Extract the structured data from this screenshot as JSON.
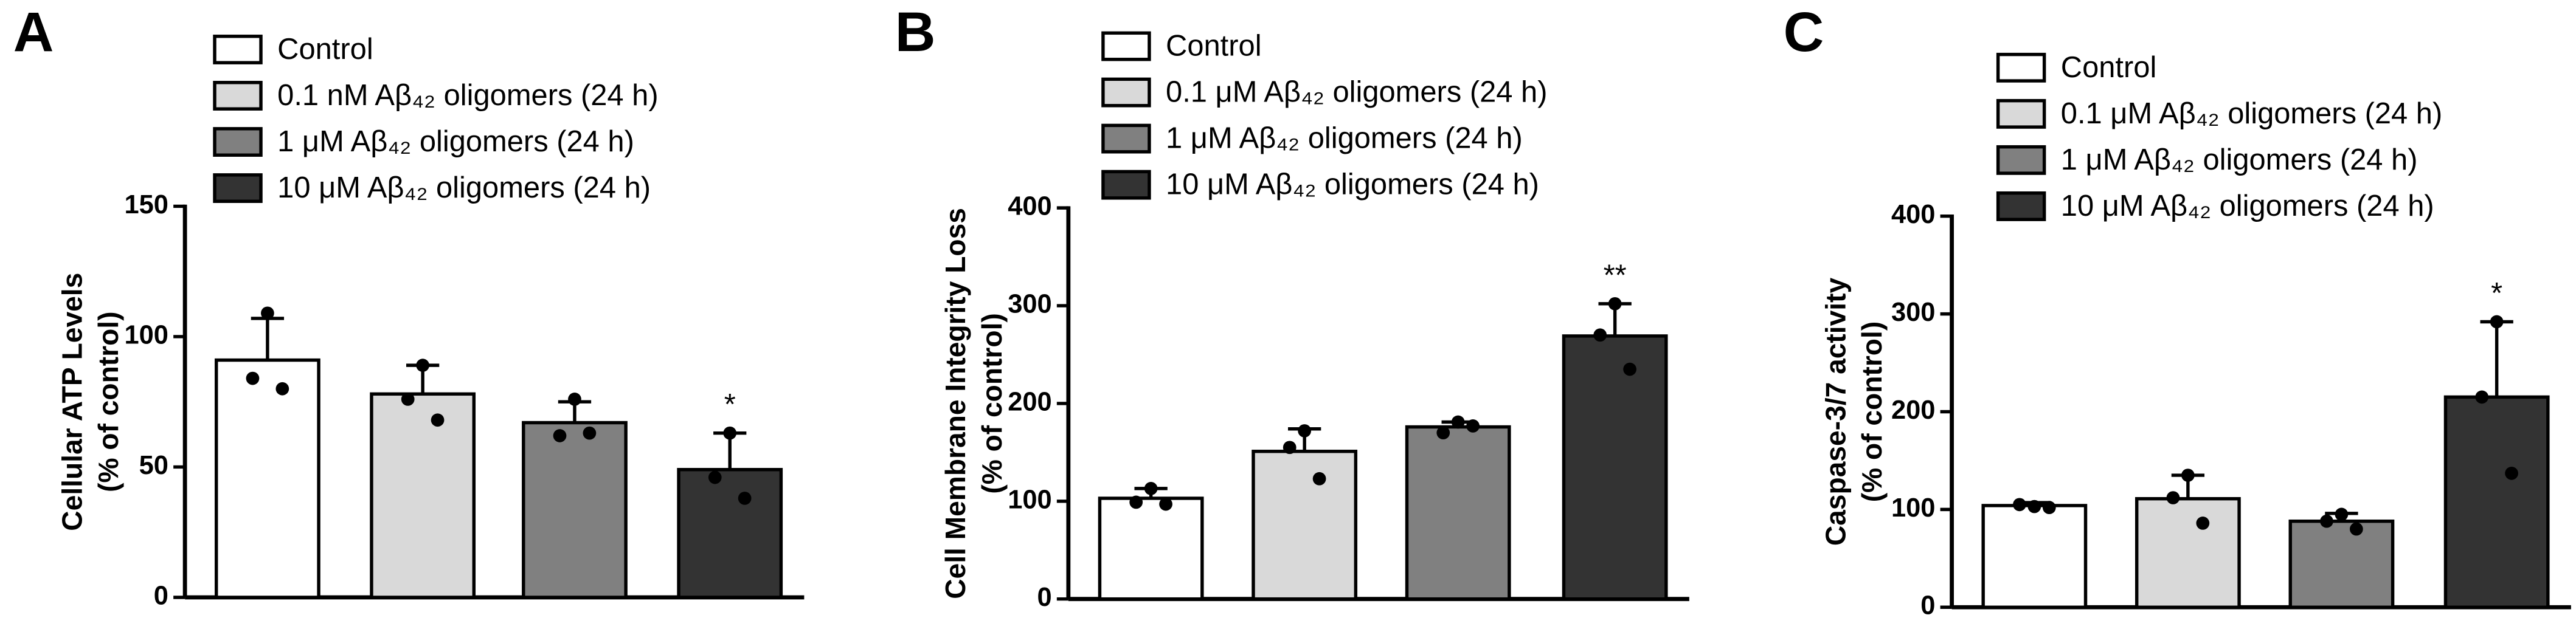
{
  "chart_data": [
    {
      "type": "bar",
      "panel": "A",
      "ylabel": [
        "Cellular ATP Levels",
        "(% of control)"
      ],
      "ylim": [
        0,
        150
      ],
      "yticks": [
        0,
        50,
        100,
        150
      ],
      "series": [
        {
          "name": "Control",
          "color": "#ffffff",
          "value": 91,
          "error": 16,
          "points": [
            109,
            84,
            80
          ]
        },
        {
          "name": "0.1 nM Aβ₄₂ oligomers (24 h)",
          "color": "#d9d9d9",
          "value": 78,
          "error": 11,
          "points": [
            89,
            76,
            68
          ]
        },
        {
          "name": "1 μM Aβ₄₂ oligomers (24 h)",
          "color": "#808080",
          "value": 67,
          "error": 8,
          "points": [
            76,
            62,
            63
          ]
        },
        {
          "name": "10 μM Aβ₄₂ oligomers (24 h)",
          "color": "#333333",
          "value": 49,
          "error": 14,
          "points": [
            63,
            46,
            38
          ],
          "annotation": "*"
        }
      ]
    },
    {
      "type": "bar",
      "panel": "B",
      "ylabel": [
        "Cell Membrane Integrity Loss",
        "(% of control)"
      ],
      "ylim": [
        0,
        400
      ],
      "yticks": [
        0,
        100,
        200,
        300,
        400
      ],
      "series": [
        {
          "name": "Control",
          "color": "#ffffff",
          "value": 103,
          "error": 10,
          "points": [
            113,
            99,
            97
          ]
        },
        {
          "name": "0.1 μM Aβ₄₂ oligomers (24 h)",
          "color": "#d9d9d9",
          "value": 151,
          "error": 23,
          "points": [
            172,
            155,
            123
          ]
        },
        {
          "name": "1 μM Aβ₄₂ oligomers (24 h)",
          "color": "#808080",
          "value": 176,
          "error": 5,
          "points": [
            181,
            170,
            177
          ]
        },
        {
          "name": "10 μM Aβ₄₂ oligomers (24 h)",
          "color": "#333333",
          "value": 269,
          "error": 33,
          "points": [
            302,
            270,
            235
          ],
          "annotation": "**"
        }
      ]
    },
    {
      "type": "bar",
      "panel": "C",
      "ylabel": [
        "Caspase-3/7 activity",
        "(% of control)"
      ],
      "ylim": [
        0,
        400
      ],
      "yticks": [
        0,
        100,
        200,
        300,
        400
      ],
      "series": [
        {
          "name": "Control",
          "color": "#ffffff",
          "value": 104,
          "error": 3,
          "points": [
            103,
            105,
            102
          ]
        },
        {
          "name": "0.1 μM Aβ₄₂ oligomers (24 h)",
          "color": "#d9d9d9",
          "value": 111,
          "error": 24,
          "points": [
            135,
            112,
            86
          ]
        },
        {
          "name": "1 μM Aβ₄₂ oligomers (24 h)",
          "color": "#808080",
          "value": 88,
          "error": 8,
          "points": [
            95,
            88,
            80
          ]
        },
        {
          "name": "10 μM Aβ₄₂ oligomers (24 h)",
          "color": "#333333",
          "value": 215,
          "error": 77,
          "points": [
            292,
            215,
            137
          ],
          "annotation": "*"
        }
      ]
    }
  ]
}
